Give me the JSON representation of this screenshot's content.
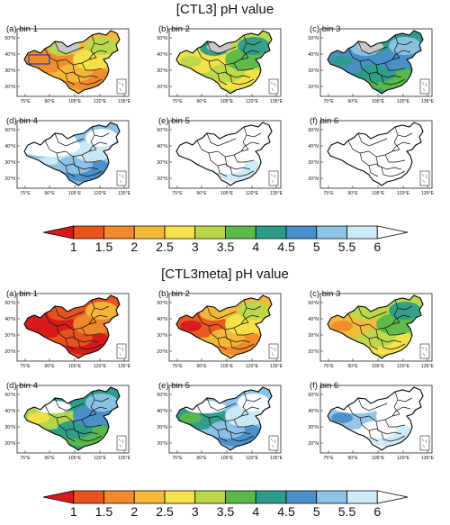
{
  "figures": [
    {
      "title": "[CTL3]  pH  value",
      "panels": [
        {
          "label": "(a) bin 1",
          "ph_level": 1,
          "show_box": true
        },
        {
          "label": "(b) bin 2",
          "ph_level": 2
        },
        {
          "label": "(c) bin 3",
          "ph_level": 3
        },
        {
          "label": "(d) bin 4",
          "ph_level": 4
        },
        {
          "label": "(e) bin 5",
          "ph_level": 5
        },
        {
          "label": "(f) bin 6",
          "ph_level": 6
        }
      ]
    },
    {
      "title": "[CTL3meta]  pH  value",
      "panels": [
        {
          "label": "(a) bin 1",
          "ph_level": 1
        },
        {
          "label": "(b) bin 2",
          "ph_level": 2
        },
        {
          "label": "(c) bin 3",
          "ph_level": 3
        },
        {
          "label": "(d) bin 4",
          "ph_level": 4
        },
        {
          "label": "(e) bin 5",
          "ph_level": 5
        },
        {
          "label": "(f) bin 6",
          "ph_level": 6
        }
      ]
    }
  ],
  "lon_ticks": [
    "75°E",
    "90°E",
    "105°E",
    "120°E",
    "135°E"
  ],
  "lat_ticks": [
    "50°N",
    "40°N",
    "30°N",
    "20°N"
  ],
  "colorbar": {
    "ticks": [
      "1",
      "1.5",
      "2",
      "2.5",
      "3",
      "3.5",
      "4",
      "4.5",
      "5",
      "5.5",
      "6"
    ],
    "colors": [
      "#d7191c",
      "#e9531d",
      "#f08a2c",
      "#f5b93a",
      "#f6e24a",
      "#b8d84a",
      "#5bb84a",
      "#2e9c8a",
      "#4a8fc9",
      "#8ec3e8",
      "#cdeaf7",
      "#ffffff"
    ]
  }
}
